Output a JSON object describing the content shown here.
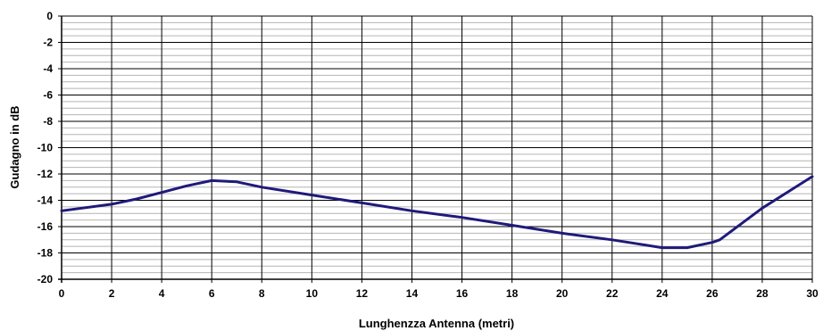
{
  "chart_data": {
    "type": "line",
    "title": "",
    "xlabel": "Lunghenzza Antenna (metri)",
    "ylabel": "Gudagno in dB",
    "xlim": [
      0,
      30
    ],
    "ylim": [
      -20,
      0
    ],
    "x_ticks": [
      0,
      2,
      4,
      6,
      8,
      10,
      12,
      14,
      16,
      18,
      20,
      22,
      24,
      26,
      28,
      30
    ],
    "y_ticks": [
      0,
      -2,
      -4,
      -6,
      -8,
      -10,
      -12,
      -14,
      -16,
      -18,
      -20
    ],
    "x_tick_labels": [
      "0",
      "2",
      "4",
      "6",
      "8",
      "10",
      "12",
      "14",
      "16",
      "18",
      "20",
      "22",
      "24",
      "26",
      "28",
      "30"
    ],
    "y_tick_labels": [
      "0",
      "-2",
      "-4",
      "-6",
      "-8",
      "-10",
      "-12",
      "-14",
      "-16",
      "-18",
      "-20"
    ],
    "minor_y_step": 0.5,
    "grid": true,
    "legend": "none",
    "series": [
      {
        "color": "#1f1a7a",
        "x": [
          0,
          2,
          3,
          4,
          5,
          6,
          7,
          8,
          10,
          12,
          14,
          16,
          18,
          20,
          22,
          23,
          24,
          25,
          26,
          26.3,
          28,
          30
        ],
        "y": [
          -14.8,
          -14.3,
          -13.9,
          -13.4,
          -12.9,
          -12.5,
          -12.6,
          -13.0,
          -13.6,
          -14.2,
          -14.8,
          -15.3,
          -15.9,
          -16.5,
          -17.0,
          -17.3,
          -17.6,
          -17.6,
          -17.2,
          -17.0,
          -14.6,
          -12.2
        ]
      }
    ]
  }
}
